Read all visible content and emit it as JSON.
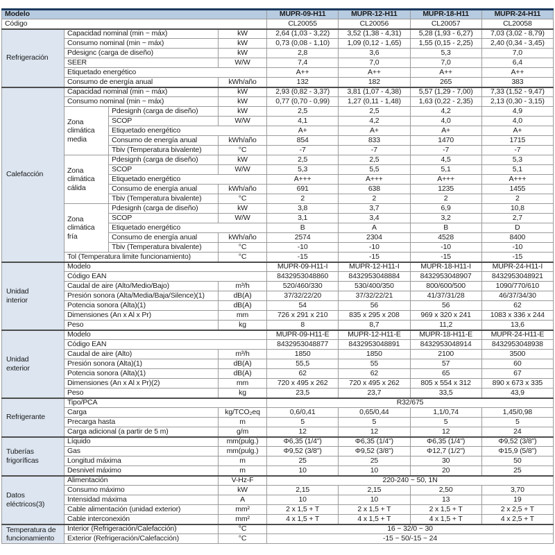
{
  "colors": {
    "header_bg": "#b7cbe1",
    "section_bg": "#dce5f0",
    "border": "#9a9a9a",
    "section_border": "#4c4c4c",
    "top_bar": "#1c3a5e",
    "text": "#1a1a1a"
  },
  "header": {
    "model_label": "Modelo",
    "code_label": "Código",
    "models": [
      "MUPR-09-H11",
      "MUPR-12-H11",
      "MUPR-18-H11",
      "MUPR-24-H11"
    ],
    "codes": [
      "CL20055",
      "CL20056",
      "CL20057",
      "CL20058"
    ]
  },
  "sections": [
    {
      "label": "Refrigeración",
      "rows": [
        {
          "p": "Capacidad nominal (min ~ máx)",
          "u": "kW",
          "v": [
            "2,64 (1,03 - 3,22)",
            "3,52 (1,38 - 4,31)",
            "5,28 (1,93 - 6,27)",
            "7,03 (3,02 - 8,79)"
          ]
        },
        {
          "p": "Consumo nominal (min ~ máx)",
          "u": "kW",
          "v": [
            "0,73 (0,08 - 1,10)",
            "1,09 (0,12 - 1,65)",
            "1,55 (0,15 - 2,25)",
            "2,40 (0,34 - 3,45)"
          ]
        },
        {
          "p": "Pdesignc (carga de diseño)",
          "u": "kW",
          "v": [
            "2,8",
            "3,6",
            "5,3",
            "7,0"
          ]
        },
        {
          "p": "SEER",
          "u": "W/W",
          "v": [
            "7,4",
            "7,0",
            "7,0",
            "6,4"
          ]
        },
        {
          "p": "Etiquetado energético",
          "mu": true,
          "v": [
            "A++",
            "A++",
            "A++",
            "A++"
          ]
        },
        {
          "p": "Consumo de energía anual",
          "u": "kWh/año",
          "v": [
            "132",
            "182",
            "265",
            "383"
          ]
        }
      ]
    },
    {
      "label": "Calefacción",
      "rows": [
        {
          "p": "Capacidad nominal (min ~ máx)",
          "u": "kW",
          "v": [
            "2,93 (0,82 - 3,37)",
            "3,81 (1,07 - 4,38)",
            "5,57 (1,29 - 7,00)",
            "7,33 (1,52 - 9,47)"
          ]
        },
        {
          "p": "Consumo nominal (min ~ máx)",
          "u": "kW",
          "v": [
            "0,77 (0,70 - 0,99)",
            "1,27 (0,11 - 1,48)",
            "1,63 (0,22 - 2,35)",
            "2,13 (0,30 - 3,15)"
          ]
        },
        {
          "zone": "Zona\nclimática\nmedia",
          "zspan": 5,
          "z": true,
          "p": "Pdesignh (carga de diseño)",
          "u": "kW",
          "v": [
            "2,5",
            "2,5",
            "4,2",
            "4,9"
          ]
        },
        {
          "z": true,
          "p": "SCOP",
          "u": "W/W",
          "v": [
            "4,1",
            "4,2",
            "4,0",
            "4,0"
          ]
        },
        {
          "z": true,
          "p": "Etiquetado energético",
          "mu": true,
          "v": [
            "A+",
            "A+",
            "A+",
            "A+"
          ]
        },
        {
          "z": true,
          "p": "Consumo de energía anual",
          "u": "kWh/año",
          "v": [
            "854",
            "833",
            "1470",
            "1715"
          ]
        },
        {
          "z": true,
          "p": "Tbiv (Temperatura bivalente)",
          "u": "°C",
          "v": [
            "-7",
            "-7",
            "-7",
            "-7"
          ]
        },
        {
          "zone": "Zona\nclimática\ncálida",
          "zspan": 5,
          "z": true,
          "p": "Pdesignh (carga de diseño)",
          "u": "kW",
          "v": [
            "2,5",
            "2,5",
            "4,5",
            "5,3"
          ]
        },
        {
          "z": true,
          "p": "SCOP",
          "u": "W/W",
          "v": [
            "5,3",
            "5,5",
            "5,1",
            "5,1"
          ]
        },
        {
          "z": true,
          "p": "Etiquetado energético",
          "mu": true,
          "v": [
            "A+++",
            "A+++",
            "A+++",
            "A+++"
          ]
        },
        {
          "z": true,
          "p": "Consumo de energía anual",
          "u": "kWh/año",
          "v": [
            "691",
            "638",
            "1235",
            "1455"
          ]
        },
        {
          "z": true,
          "p": "Tbiv (Temperatura bivalente)",
          "u": "°C",
          "v": [
            "2",
            "2",
            "2",
            "2"
          ]
        },
        {
          "zone": "Zona\nclimática\nfría",
          "zspan": 5,
          "z": true,
          "p": "Pdesignh (carga de diseño)",
          "u": "kW",
          "v": [
            "3,8",
            "3,7",
            "6,9",
            "10,8"
          ]
        },
        {
          "z": true,
          "p": "SCOP",
          "u": "W/W",
          "v": [
            "3,1",
            "3,4",
            "3,2",
            "2,7"
          ]
        },
        {
          "z": true,
          "p": "Etiquetado energético",
          "mu": true,
          "v": [
            "B",
            "A",
            "B",
            "D"
          ]
        },
        {
          "z": true,
          "p": "Consumo de energía anual",
          "u": "kWh/año",
          "v": [
            "2574",
            "2304",
            "4528",
            "8400"
          ]
        },
        {
          "z": true,
          "p": "Tbiv (Temperatura bivalente)",
          "u": "°C",
          "v": [
            "-10",
            "-10",
            "-10",
            "-10"
          ]
        },
        {
          "p": "Tol (Temperatura limite funcionamiento)",
          "u": "°C",
          "v": [
            "-15",
            "-15",
            "-15",
            "-15"
          ]
        }
      ]
    },
    {
      "label": "Unidad\ninterior",
      "rows": [
        {
          "p": "Modelo",
          "mu": true,
          "v": [
            "MUPR-09-H11-I",
            "MUPR-12-H11-I",
            "MUPR-18-H11-I",
            "MUPR-24-H11-I"
          ]
        },
        {
          "p": "Código EAN",
          "mu": true,
          "v": [
            "8432953048860",
            "8432953048884",
            "8432953048907",
            "8432953048921"
          ]
        },
        {
          "p": "Caudal de aire (Alto/Medio/Bajo)",
          "u": "m³/h",
          "v": [
            "520/460/330",
            "530/400/350",
            "800/600/500",
            "1090/770/610"
          ]
        },
        {
          "p": "Presión sonora (Alta/Media/Baja/Silence)(1)",
          "u": "dB(A)",
          "v": [
            "37/32/22/20",
            "37/32/22/21",
            "41/37/31/28",
            "46/37/34/30"
          ]
        },
        {
          "p": "Potencia sonora (Alta)(1)",
          "u": "dB(A)",
          "v": [
            "54",
            "56",
            "56",
            "62"
          ]
        },
        {
          "p": "Dimensiones (An x Al x Pr)",
          "u": "mm",
          "v": [
            "726 x 291 x 210",
            "835 x 295 x 208",
            "969 x 320 x 241",
            "1083 x 336 x 244"
          ]
        },
        {
          "p": "Peso",
          "u": "kg",
          "v": [
            "8",
            "8,7",
            "11,2",
            "13,6"
          ]
        }
      ]
    },
    {
      "label": "Unidad\nexterior",
      "rows": [
        {
          "p": "Modelo",
          "mu": true,
          "v": [
            "MUPR-09-H11-E",
            "MUPR-12-H11-E",
            "MUPR-18-H11-E",
            "MUPR-24-H11-E"
          ]
        },
        {
          "p": "Código EAN",
          "mu": true,
          "v": [
            "8432953048877",
            "8432953048891",
            "8432953048914",
            "8432953048938"
          ]
        },
        {
          "p": "Caudal de aire (Alto)",
          "u": "m³/h",
          "v": [
            "1850",
            "1850",
            "2100",
            "3500"
          ]
        },
        {
          "p": "Presión sonora (Alta)(1)",
          "u": "dB(A)",
          "v": [
            "55,5",
            "55",
            "57",
            "60"
          ]
        },
        {
          "p": "Potencia sonora (Alta)(1)",
          "u": "dB(A)",
          "v": [
            "62",
            "62",
            "65",
            "67"
          ]
        },
        {
          "p": "Dimensiones (An x Al x Pr)(2)",
          "u": "mm",
          "v": [
            "720 x 495 x 262",
            "720 x 495 x 262",
            "805 x 554 x 312",
            "890 x 673 x 335"
          ]
        },
        {
          "p": "Peso",
          "u": "kg",
          "v": [
            "23,5",
            "23,7",
            "33,5",
            "43,9"
          ]
        }
      ]
    },
    {
      "label": "Refrigerante",
      "rows": [
        {
          "p": "Tipo/PCA",
          "mu": true,
          "v": "R32/675"
        },
        {
          "p": "Carga",
          "u": "kg/TCO₂eq",
          "v": [
            "0,6/0,41",
            "0,65/0,44",
            "1,1/0,74",
            "1,45/0,98"
          ]
        },
        {
          "p": "Precarga hasta",
          "u": "m",
          "v": [
            "5",
            "5",
            "5",
            "5"
          ]
        },
        {
          "p": "Carga adicional (a partir de 5 m)",
          "u": "g/m",
          "v": [
            "12",
            "12",
            "12",
            "24"
          ]
        }
      ]
    },
    {
      "label": "Tuberías\nfrigoríficas",
      "rows": [
        {
          "p": "Líquido",
          "u": "mm(pulg.)",
          "v": [
            "Φ6,35 (1/4\")",
            "Φ6,35 (1/4\")",
            "Φ6,35 (1/4\")",
            "Φ9,52 (3/8\")"
          ]
        },
        {
          "p": "Gas",
          "u": "mm(pulg.)",
          "v": [
            "Φ9,52 (3/8\")",
            "Φ9,52 (3/8\")",
            "Φ12,7 (1/2\")",
            "Φ15,9 (5/8\")"
          ]
        },
        {
          "p": "Longitud máxima",
          "u": "m",
          "v": [
            "25",
            "25",
            "30",
            "50"
          ]
        },
        {
          "p": "Desnivel máximo",
          "u": "m",
          "v": [
            "10",
            "10",
            "20",
            "25"
          ]
        }
      ]
    },
    {
      "label": "Datos\neléctricos(3)",
      "rows": [
        {
          "p": "Alimentación",
          "u": "V-Hz-F",
          "v": "220-240 ~ 50, 1N"
        },
        {
          "p": "Consumo máximo",
          "u": "kW",
          "v": [
            "2,15",
            "2,15",
            "2,50",
            "3,70"
          ]
        },
        {
          "p": "Intensidad máxima",
          "u": "A",
          "v": [
            "10",
            "10",
            "13",
            "19"
          ]
        },
        {
          "p": "Cable alimentación (unidad exterior)",
          "u": "mm²",
          "v": [
            "2 x 1,5 + T",
            "2 x 1,5 + T",
            "2 x 1,5 + T",
            "2 x 2,5 + T"
          ]
        },
        {
          "p": "Cable interconexión",
          "u": "mm²",
          "v": [
            "4 x 1,5 + T",
            "4 x 1,5 + T",
            "4 x 1,5 + T",
            "4 x 2,5 + T"
          ]
        }
      ]
    },
    {
      "label": "Temperatura de\nfuncionamiento",
      "rows": [
        {
          "p": "Interior (Refrigeración/Calefacción)",
          "u": "°C",
          "v": "16 ~ 32/0 ~ 30"
        },
        {
          "p": "Exterior (Refrigeración/Calefacción)",
          "u": "°C",
          "v": "-15 ~ 50/-15 ~ 24"
        }
      ]
    }
  ]
}
